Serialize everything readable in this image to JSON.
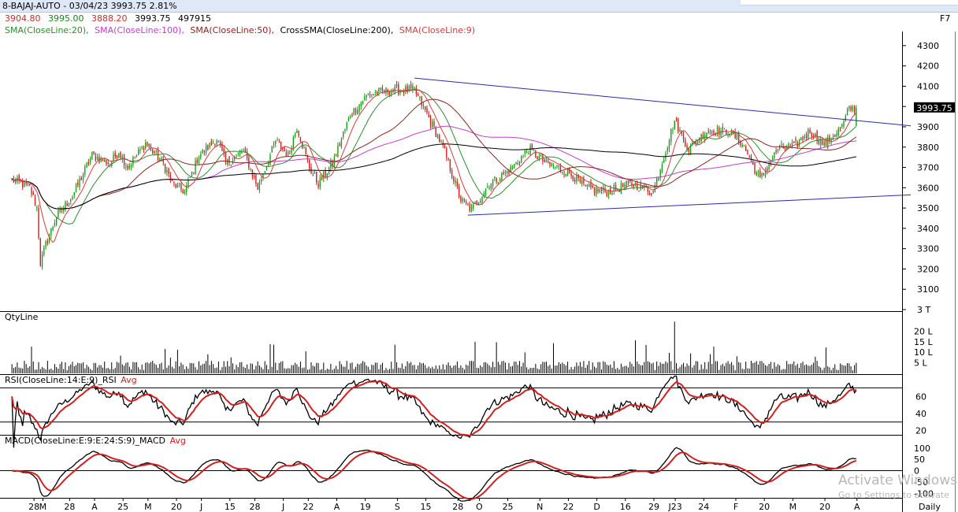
{
  "window": {
    "title": "8-BAJAJ-AUTO - 03/04/23 3993.75 2.81%"
  },
  "ohlc": {
    "open": "3904.80",
    "high": "3995.00",
    "low": "3888.20",
    "close": "3993.75",
    "volume": "497915"
  },
  "function_key": "F7",
  "sma_legend": [
    {
      "text": "SMA(CloseLine:20),",
      "color": "#2e8b2e"
    },
    {
      "text": "SMA(CloseLine:100),",
      "color": "#c040c8"
    },
    {
      "text": "SMA(CloseLine:50),",
      "color": "#8b2323"
    },
    {
      "text": "CrossSMA(CloseLine:200),",
      "color": "#000000"
    },
    {
      "text": "SMA(CloseLine:9)",
      "color": "#d23c3c"
    }
  ],
  "price_axis": {
    "min": 3000,
    "max": 4350,
    "ticks": [
      "4300",
      "4200",
      "4100",
      "4000",
      "3900",
      "3800",
      "3700",
      "3600",
      "3500",
      "3400",
      "3300",
      "3200",
      "3100",
      "3 T"
    ],
    "last_price": "3993.75"
  },
  "qty_panel": {
    "label": "QtyLine",
    "ticks": [
      "20 L",
      "15 L",
      "10 L",
      "5 L"
    ]
  },
  "rsi_panel": {
    "label": "RSI(CloseLine:14:E:9)_RSI",
    "avg_label": "Avg",
    "ticks": [
      "60",
      "40",
      "20"
    ]
  },
  "macd_panel": {
    "label": "MACD(CloseLine:E:9:E:24:S:9)_MACD",
    "avg_label": "Avg",
    "ticks": [
      "100",
      "50",
      "0",
      "-50",
      "-100"
    ]
  },
  "x_axis": {
    "labels": [
      "28",
      "M",
      "28",
      "A",
      "25",
      "M",
      "20",
      "J",
      "15",
      "28",
      "J",
      "22",
      "A",
      "19",
      "S",
      "15",
      "28",
      "O",
      "25",
      "N",
      "22",
      "D",
      "16",
      "29",
      "J23",
      "24",
      "F",
      "20",
      "M",
      "20",
      "A"
    ],
    "period": "Daily"
  },
  "watermark": {
    "line1": "Activate Windows",
    "line2": "Go to Settings to activate"
  },
  "chart_data": [
    {
      "type": "candlestick",
      "series": [
        {
          "name": "SMA(CloseLine:20)",
          "color": "#2e8b2e"
        },
        {
          "name": "SMA(CloseLine:100)",
          "color": "#c040c8"
        },
        {
          "name": "SMA(CloseLine:50)",
          "color": "#8b2323"
        },
        {
          "name": "CrossSMA(CloseLine:200)",
          "color": "#000000"
        },
        {
          "name": "SMA(CloseLine:9)",
          "color": "#d23c3c"
        }
      ],
      "anchors": [
        [
          0,
          3640
        ],
        [
          10,
          3600
        ],
        [
          14,
          3500
        ],
        [
          16,
          3230
        ],
        [
          19,
          3320
        ],
        [
          25,
          3460
        ],
        [
          34,
          3560
        ],
        [
          45,
          3760
        ],
        [
          55,
          3720
        ],
        [
          60,
          3780
        ],
        [
          65,
          3700
        ],
        [
          75,
          3820
        ],
        [
          85,
          3720
        ],
        [
          90,
          3620
        ],
        [
          97,
          3580
        ],
        [
          105,
          3760
        ],
        [
          115,
          3840
        ],
        [
          120,
          3720
        ],
        [
          130,
          3780
        ],
        [
          138,
          3600
        ],
        [
          148,
          3830
        ],
        [
          155,
          3760
        ],
        [
          160,
          3900
        ],
        [
          167,
          3700
        ],
        [
          172,
          3620
        ],
        [
          180,
          3720
        ],
        [
          190,
          3960
        ],
        [
          200,
          4060
        ],
        [
          212,
          4080
        ],
        [
          226,
          4080
        ],
        [
          232,
          3980
        ],
        [
          242,
          3800
        ],
        [
          252,
          3540
        ],
        [
          258,
          3490
        ],
        [
          268,
          3620
        ],
        [
          280,
          3690
        ],
        [
          290,
          3790
        ],
        [
          300,
          3720
        ],
        [
          312,
          3680
        ],
        [
          322,
          3600
        ],
        [
          334,
          3580
        ],
        [
          348,
          3620
        ],
        [
          360,
          3580
        ],
        [
          372,
          3930
        ],
        [
          380,
          3790
        ],
        [
          390,
          3880
        ],
        [
          402,
          3880
        ],
        [
          410,
          3820
        ],
        [
          420,
          3640
        ],
        [
          430,
          3790
        ],
        [
          440,
          3810
        ],
        [
          448,
          3880
        ],
        [
          456,
          3810
        ],
        [
          466,
          3900
        ],
        [
          470,
          3990
        ]
      ],
      "last_close": 3993.75,
      "y_range": [
        3000,
        4350
      ],
      "trendlines": [
        {
          "start": {
            "bar": 226,
            "price": 4140
          },
          "end": {
            "bar": 470,
            "price": 3905
          }
        },
        {
          "start": {
            "bar": 256,
            "price": 3465
          },
          "end": {
            "bar": 470,
            "price": 3565
          }
        }
      ]
    },
    {
      "type": "bar",
      "title": "QtyLine",
      "y_range": [
        0,
        2500000
      ]
    },
    {
      "type": "line",
      "title": "RSI(CloseLine:14:E:9)_RSI",
      "y_range": [
        15,
        75
      ],
      "guides": [
        70,
        30
      ]
    },
    {
      "type": "line",
      "title": "MACD(CloseLine:E:9:E:24:S:9)_MACD",
      "y_range": [
        -120,
        120
      ],
      "guides": [
        0
      ]
    }
  ]
}
